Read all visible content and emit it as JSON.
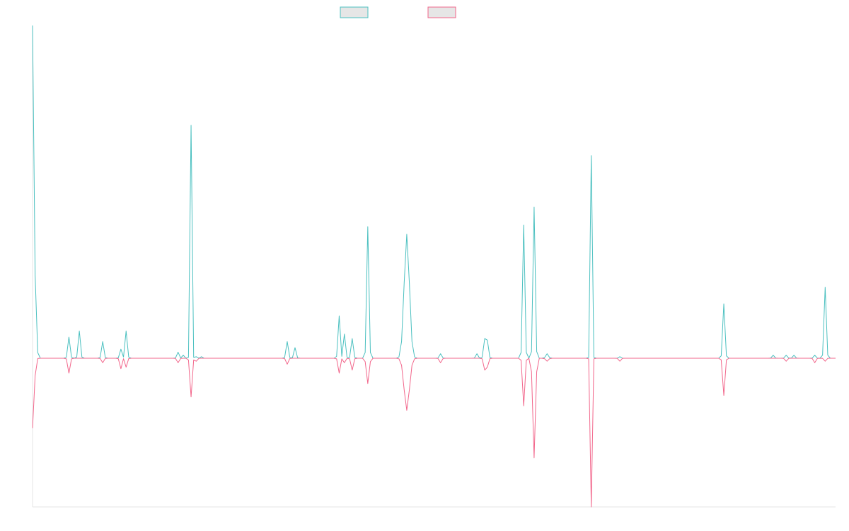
{
  "chart_data": {
    "type": "line",
    "title": "",
    "xlabel": "",
    "ylabel": "",
    "grid": false,
    "legend_position": "top",
    "x_count": 300,
    "ylim": [
      -100,
      220
    ],
    "series": [
      {
        "name": "",
        "color": "#4bc0c0",
        "fill": "#e6e6e6",
        "baseline": 0,
        "events": [
          [
            0,
            0.6,
            5,
            220
          ],
          [
            1,
            0.6,
            4,
            15
          ],
          [
            14,
            0.4,
            3,
            14
          ],
          [
            18,
            0.4,
            3,
            18
          ],
          [
            27,
            0.4,
            3,
            11
          ],
          [
            34,
            0.4,
            3,
            6
          ],
          [
            36,
            0.4,
            3,
            18
          ],
          [
            56,
            0.4,
            3,
            4
          ],
          [
            58,
            0.4,
            3,
            2
          ],
          [
            61,
            0.3,
            4,
            154
          ],
          [
            63,
            0.4,
            3,
            1
          ],
          [
            65,
            0.4,
            3,
            1
          ],
          [
            98,
            0.4,
            3,
            11
          ],
          [
            101,
            0.4,
            3,
            7
          ],
          [
            118,
            0.4,
            3,
            28
          ],
          [
            120,
            0.4,
            3,
            16
          ],
          [
            123,
            0.4,
            3,
            13
          ],
          [
            129,
            0.4,
            3,
            87
          ],
          [
            144,
            1.0,
            6,
            82
          ],
          [
            157,
            0.4,
            3,
            3
          ],
          [
            171,
            0.4,
            3,
            3
          ],
          [
            174,
            0.4,
            3,
            13
          ],
          [
            175,
            0.4,
            3,
            12
          ],
          [
            189,
            0.4,
            3,
            88
          ],
          [
            193,
            0.4,
            3,
            100
          ],
          [
            198,
            0.5,
            3,
            3
          ],
          [
            215,
            0.3,
            4,
            134
          ],
          [
            226,
            0.4,
            3,
            1
          ],
          [
            266,
            0.4,
            3,
            36
          ],
          [
            285,
            0.4,
            3,
            2
          ],
          [
            290,
            0.4,
            3,
            2
          ],
          [
            293,
            0.4,
            3,
            2
          ],
          [
            301,
            0.4,
            3,
            2
          ],
          [
            305,
            0.4,
            3,
            47
          ]
        ]
      },
      {
        "name": "",
        "color": "#f2668b",
        "fill": "#e6e6e6",
        "baseline": 0,
        "events": [
          [
            0,
            0.6,
            6,
            -47
          ],
          [
            14,
            0.4,
            3,
            -10
          ],
          [
            27,
            0.4,
            3,
            -3
          ],
          [
            34,
            0.4,
            3,
            -7
          ],
          [
            36,
            0.4,
            3,
            -6
          ],
          [
            56,
            0.4,
            3,
            -3
          ],
          [
            61,
            0.4,
            3,
            -26
          ],
          [
            63,
            0.4,
            3,
            -2
          ],
          [
            98,
            0.4,
            3,
            -4
          ],
          [
            118,
            0.4,
            3,
            -10
          ],
          [
            120,
            0.4,
            3,
            -3
          ],
          [
            123,
            0.4,
            3,
            -8
          ],
          [
            129,
            0.5,
            3,
            -17
          ],
          [
            144,
            1.0,
            6,
            -35
          ],
          [
            157,
            0.4,
            3,
            -3
          ],
          [
            174,
            0.4,
            3,
            -8
          ],
          [
            175,
            0.4,
            3,
            -6
          ],
          [
            189,
            0.4,
            3,
            -32
          ],
          [
            193,
            0.5,
            3,
            -67
          ],
          [
            198,
            0.5,
            3,
            -2
          ],
          [
            215,
            0.3,
            4,
            -100
          ],
          [
            226,
            0.4,
            3,
            -2
          ],
          [
            266,
            0.4,
            3,
            -25
          ],
          [
            290,
            0.4,
            3,
            -2
          ],
          [
            301,
            0.4,
            3,
            -3
          ],
          [
            305,
            0.4,
            3,
            -2
          ]
        ]
      }
    ]
  }
}
